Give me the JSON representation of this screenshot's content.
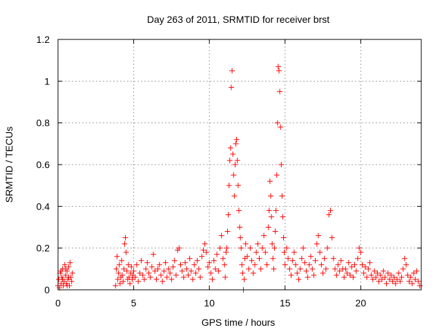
{
  "chart_data": {
    "type": "scatter",
    "title": "Day 263 of 2011, SRMTID for receiver brst",
    "xlabel": "GPS time / hours",
    "ylabel": "SRMTID / TECUs",
    "xlim": [
      0,
      24
    ],
    "ylim": [
      0,
      1.2
    ],
    "xticks": [
      0,
      5,
      10,
      15,
      20
    ],
    "xtick_labels": [
      "0",
      "5",
      "10",
      "15",
      "20"
    ],
    "yticks": [
      0,
      0.2,
      0.4,
      0.6,
      0.8,
      1.0,
      1.2
    ],
    "ytick_labels": [
      "0",
      "0.2",
      "0.4",
      "0.6",
      "0.8",
      "1",
      "1.2"
    ],
    "grid": true,
    "marker": "+",
    "series": [
      {
        "name": "SRMTID",
        "color": "#ff0000",
        "points": [
          [
            0.0,
            0.02
          ],
          [
            0.05,
            0.05
          ],
          [
            0.1,
            0.01
          ],
          [
            0.15,
            0.08
          ],
          [
            0.2,
            0.03
          ],
          [
            0.25,
            0.06
          ],
          [
            0.3,
            0.1
          ],
          [
            0.35,
            0.02
          ],
          [
            0.4,
            0.04
          ],
          [
            0.45,
            0.12
          ],
          [
            0.5,
            0.07
          ],
          [
            0.55,
            0.03
          ],
          [
            0.6,
            0.09
          ],
          [
            0.65,
            0.05
          ],
          [
            0.7,
            0.11
          ],
          [
            0.75,
            0.02
          ],
          [
            0.8,
            0.13
          ],
          [
            0.85,
            0.06
          ],
          [
            0.9,
            0.04
          ],
          [
            0.95,
            0.08
          ],
          [
            0.5,
            0.1
          ],
          [
            0.3,
            0.05
          ],
          [
            0.7,
            0.06
          ],
          [
            0.2,
            0.09
          ],
          [
            0.6,
            0.02
          ],
          [
            3.8,
            0.02
          ],
          [
            3.85,
            0.1
          ],
          [
            3.9,
            0.16
          ],
          [
            3.95,
            0.05
          ],
          [
            4.0,
            0.08
          ],
          [
            4.05,
            0.12
          ],
          [
            4.1,
            0.03
          ],
          [
            4.15,
            0.06
          ],
          [
            4.2,
            0.14
          ],
          [
            4.25,
            0.07
          ],
          [
            4.3,
            0.04
          ],
          [
            4.35,
            0.1
          ],
          [
            4.4,
            0.22
          ],
          [
            4.45,
            0.25
          ],
          [
            4.5,
            0.18
          ],
          [
            4.55,
            0.09
          ],
          [
            4.6,
            0.05
          ],
          [
            4.65,
            0.12
          ],
          [
            4.7,
            0.06
          ],
          [
            4.75,
            0.03
          ],
          [
            4.8,
            0.08
          ],
          [
            4.85,
            0.11
          ],
          [
            4.9,
            0.05
          ],
          [
            4.95,
            0.07
          ],
          [
            5.0,
            0.09
          ],
          [
            5.1,
            0.06
          ],
          [
            5.2,
            0.12
          ],
          [
            5.3,
            0.04
          ],
          [
            5.4,
            0.08
          ],
          [
            5.5,
            0.14
          ],
          [
            5.6,
            0.07
          ],
          [
            5.7,
            0.05
          ],
          [
            5.8,
            0.1
          ],
          [
            5.9,
            0.13
          ],
          [
            6.0,
            0.08
          ],
          [
            6.1,
            0.06
          ],
          [
            6.2,
            0.11
          ],
          [
            6.3,
            0.17
          ],
          [
            6.4,
            0.09
          ],
          [
            6.5,
            0.05
          ],
          [
            6.6,
            0.1
          ],
          [
            6.7,
            0.12
          ],
          [
            6.8,
            0.07
          ],
          [
            6.9,
            0.04
          ],
          [
            7.0,
            0.09
          ],
          [
            7.1,
            0.13
          ],
          [
            7.2,
            0.06
          ],
          [
            7.3,
            0.1
          ],
          [
            7.4,
            0.08
          ],
          [
            7.5,
            0.05
          ],
          [
            7.6,
            0.11
          ],
          [
            7.7,
            0.14
          ],
          [
            7.8,
            0.07
          ],
          [
            7.9,
            0.19
          ],
          [
            8.0,
            0.2
          ],
          [
            8.1,
            0.12
          ],
          [
            8.2,
            0.09
          ],
          [
            8.3,
            0.06
          ],
          [
            8.4,
            0.13
          ],
          [
            8.5,
            0.1
          ],
          [
            8.6,
            0.07
          ],
          [
            8.7,
            0.15
          ],
          [
            8.8,
            0.09
          ],
          [
            8.9,
            0.05
          ],
          [
            9.0,
            0.12
          ],
          [
            9.1,
            0.08
          ],
          [
            9.2,
            0.14
          ],
          [
            9.3,
            0.1
          ],
          [
            9.4,
            0.06
          ],
          [
            9.5,
            0.16
          ],
          [
            9.6,
            0.19
          ],
          [
            9.7,
            0.22
          ],
          [
            9.8,
            0.18
          ],
          [
            9.9,
            0.11
          ],
          [
            10.0,
            0.13
          ],
          [
            10.1,
            0.08
          ],
          [
            10.2,
            0.05
          ],
          [
            10.3,
            0.14
          ],
          [
            10.4,
            0.1
          ],
          [
            10.5,
            0.17
          ],
          [
            10.6,
            0.09
          ],
          [
            10.7,
            0.2
          ],
          [
            10.8,
            0.26
          ],
          [
            10.9,
            0.15
          ],
          [
            11.0,
            0.12
          ],
          [
            11.05,
            0.06
          ],
          [
            11.1,
            0.18
          ],
          [
            11.15,
            0.2
          ],
          [
            11.2,
            0.28
          ],
          [
            11.25,
            0.36
          ],
          [
            11.3,
            0.5
          ],
          [
            11.35,
            0.62
          ],
          [
            11.4,
            0.68
          ],
          [
            11.45,
            0.97
          ],
          [
            11.5,
            1.05
          ],
          [
            11.55,
            0.65
          ],
          [
            11.6,
            0.55
          ],
          [
            11.65,
            0.45
          ],
          [
            11.7,
            0.6
          ],
          [
            11.75,
            0.7
          ],
          [
            11.8,
            0.72
          ],
          [
            11.85,
            0.62
          ],
          [
            11.9,
            0.5
          ],
          [
            11.95,
            0.38
          ],
          [
            12.0,
            0.3
          ],
          [
            12.05,
            0.25
          ],
          [
            12.1,
            0.2
          ],
          [
            12.15,
            0.12
          ],
          [
            12.2,
            0.08
          ],
          [
            12.25,
            0.0
          ],
          [
            12.3,
            0.05
          ],
          [
            12.35,
            0.15
          ],
          [
            12.4,
            0.22
          ],
          [
            12.5,
            0.16
          ],
          [
            12.6,
            0.1
          ],
          [
            12.7,
            0.2
          ],
          [
            12.8,
            0.14
          ],
          [
            12.9,
            0.08
          ],
          [
            13.0,
            0.12
          ],
          [
            13.1,
            0.18
          ],
          [
            13.2,
            0.22
          ],
          [
            13.3,
            0.15
          ],
          [
            13.4,
            0.1
          ],
          [
            13.5,
            0.2
          ],
          [
            13.6,
            0.26
          ],
          [
            13.7,
            0.18
          ],
          [
            13.8,
            0.12
          ],
          [
            13.9,
            0.3
          ],
          [
            13.95,
            0.38
          ],
          [
            14.0,
            0.52
          ],
          [
            14.05,
            0.45
          ],
          [
            14.1,
            0.35
          ],
          [
            14.15,
            0.22
          ],
          [
            14.2,
            0.15
          ],
          [
            14.25,
            0.1
          ],
          [
            14.3,
            0.2
          ],
          [
            14.35,
            0.28
          ],
          [
            14.4,
            0.38
          ],
          [
            14.45,
            0.55
          ],
          [
            14.5,
            0.8
          ],
          [
            14.55,
            1.07
          ],
          [
            14.6,
            1.05
          ],
          [
            14.65,
            0.95
          ],
          [
            14.7,
            0.78
          ],
          [
            14.75,
            0.6
          ],
          [
            14.8,
            0.45
          ],
          [
            14.85,
            0.35
          ],
          [
            14.9,
            0.25
          ],
          [
            14.95,
            0.18
          ],
          [
            15.0,
            0.12
          ],
          [
            15.1,
            0.2
          ],
          [
            15.2,
            0.15
          ],
          [
            15.3,
            0.1
          ],
          [
            15.4,
            0.07
          ],
          [
            15.5,
            0.14
          ],
          [
            15.6,
            0.18
          ],
          [
            15.7,
            0.12
          ],
          [
            15.8,
            0.08
          ],
          [
            15.9,
            0.05
          ],
          [
            16.0,
            0.1
          ],
          [
            16.1,
            0.15
          ],
          [
            16.2,
            0.2
          ],
          [
            16.3,
            0.13
          ],
          [
            16.4,
            0.09
          ],
          [
            16.5,
            0.06
          ],
          [
            16.6,
            0.12
          ],
          [
            16.7,
            0.16
          ],
          [
            16.8,
            0.1
          ],
          [
            16.9,
            0.07
          ],
          [
            17.0,
            0.14
          ],
          [
            17.1,
            0.22
          ],
          [
            17.2,
            0.26
          ],
          [
            17.3,
            0.18
          ],
          [
            17.4,
            0.12
          ],
          [
            17.5,
            0.08
          ],
          [
            17.6,
            0.15
          ],
          [
            17.7,
            0.1
          ],
          [
            17.8,
            0.2
          ],
          [
            17.9,
            0.36
          ],
          [
            18.0,
            0.38
          ],
          [
            18.1,
            0.25
          ],
          [
            18.2,
            0.15
          ],
          [
            18.3,
            0.1
          ],
          [
            18.4,
            0.07
          ],
          [
            18.5,
            0.12
          ],
          [
            18.6,
            0.09
          ],
          [
            18.7,
            0.14
          ],
          [
            18.8,
            0.1
          ],
          [
            18.9,
            0.06
          ],
          [
            19.0,
            0.1
          ],
          [
            19.1,
            0.08
          ],
          [
            19.2,
            0.13
          ],
          [
            19.3,
            0.07
          ],
          [
            19.4,
            0.11
          ],
          [
            19.5,
            0.06
          ],
          [
            19.6,
            0.12
          ],
          [
            19.7,
            0.09
          ],
          [
            19.8,
            0.15
          ],
          [
            19.9,
            0.2
          ],
          [
            20.0,
            0.18
          ],
          [
            20.1,
            0.12
          ],
          [
            20.2,
            0.08
          ],
          [
            20.3,
            0.11
          ],
          [
            20.4,
            0.06
          ],
          [
            20.5,
            0.1
          ],
          [
            20.6,
            0.13
          ],
          [
            20.7,
            0.07
          ],
          [
            20.8,
            0.05
          ],
          [
            20.9,
            0.09
          ],
          [
            21.0,
            0.06
          ],
          [
            21.1,
            0.08
          ],
          [
            21.2,
            0.04
          ],
          [
            21.3,
            0.07
          ],
          [
            21.4,
            0.05
          ],
          [
            21.5,
            0.09
          ],
          [
            21.6,
            0.06
          ],
          [
            21.7,
            0.03
          ],
          [
            21.8,
            0.08
          ],
          [
            21.9,
            0.05
          ],
          [
            22.0,
            0.07
          ],
          [
            22.1,
            0.04
          ],
          [
            22.2,
            0.06
          ],
          [
            22.3,
            0.03
          ],
          [
            22.4,
            0.05
          ],
          [
            22.5,
            0.08
          ],
          [
            22.6,
            0.04
          ],
          [
            22.7,
            0.06
          ],
          [
            22.8,
            0.1
          ],
          [
            22.9,
            0.15
          ],
          [
            23.0,
            0.12
          ],
          [
            23.1,
            0.07
          ],
          [
            23.2,
            0.04
          ],
          [
            23.3,
            0.06
          ],
          [
            23.4,
            0.03
          ],
          [
            23.5,
            0.08
          ],
          [
            23.6,
            0.05
          ],
          [
            23.7,
            0.09
          ],
          [
            23.8,
            0.04
          ],
          [
            23.9,
            0.02
          ]
        ]
      }
    ]
  }
}
